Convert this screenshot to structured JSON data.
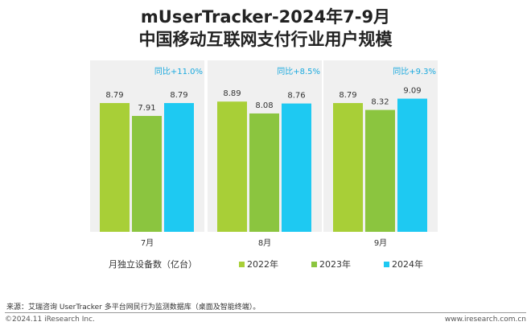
{
  "title_line1": "mUserTracker-2024年7-9月",
  "title_line2": "中国移动互联网支付行业用户规模",
  "chart_data": {
    "type": "bar",
    "ylabel": "月独立设备数（亿台）",
    "categories": [
      "7月",
      "8月",
      "9月"
    ],
    "series": [
      {
        "name": "2022年",
        "values": [
          8.79,
          8.89,
          8.79
        ],
        "color": "#a8cf37"
      },
      {
        "name": "2023年",
        "values": [
          7.91,
          8.08,
          8.32
        ],
        "color": "#8bc53f"
      },
      {
        "name": "2024年",
        "values": [
          8.79,
          8.76,
          9.09
        ],
        "color": "#1ec9f2"
      }
    ],
    "annotations": [
      "同比+11.0%",
      "同比+8.5%",
      "同比+9.3%"
    ],
    "annotation_color": "#1aa9de",
    "panel_color": "#f0f0f0",
    "ylim": [
      0,
      10
    ]
  },
  "source": "来源：艾瑞咨询 UserTracker 多平台网民行为监测数据库（桌面及智能终端）。",
  "copyright": "©2024.11 iResearch Inc.",
  "website": "www.iresearch.com.cn"
}
